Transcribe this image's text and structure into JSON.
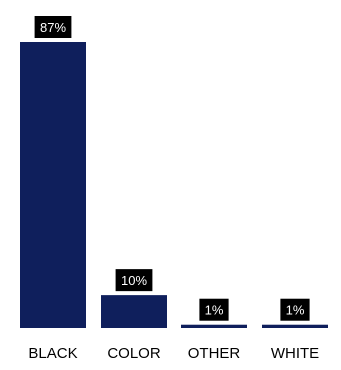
{
  "chart_data": {
    "type": "bar",
    "categories": [
      "BLACK",
      "COLOR",
      "OTHER",
      "WHITE"
    ],
    "values": [
      87,
      10,
      1,
      1
    ],
    "data_labels": [
      "87%",
      "10%",
      "1%",
      "1%"
    ],
    "title": "",
    "xlabel": "",
    "ylabel": "",
    "ylim": [
      0,
      100
    ],
    "grid": false,
    "legend": "none"
  },
  "colors": {
    "bar": "#0f1f5c",
    "label_bg": "#000000",
    "label_text": "#ffffff",
    "category_text": "#000000"
  }
}
